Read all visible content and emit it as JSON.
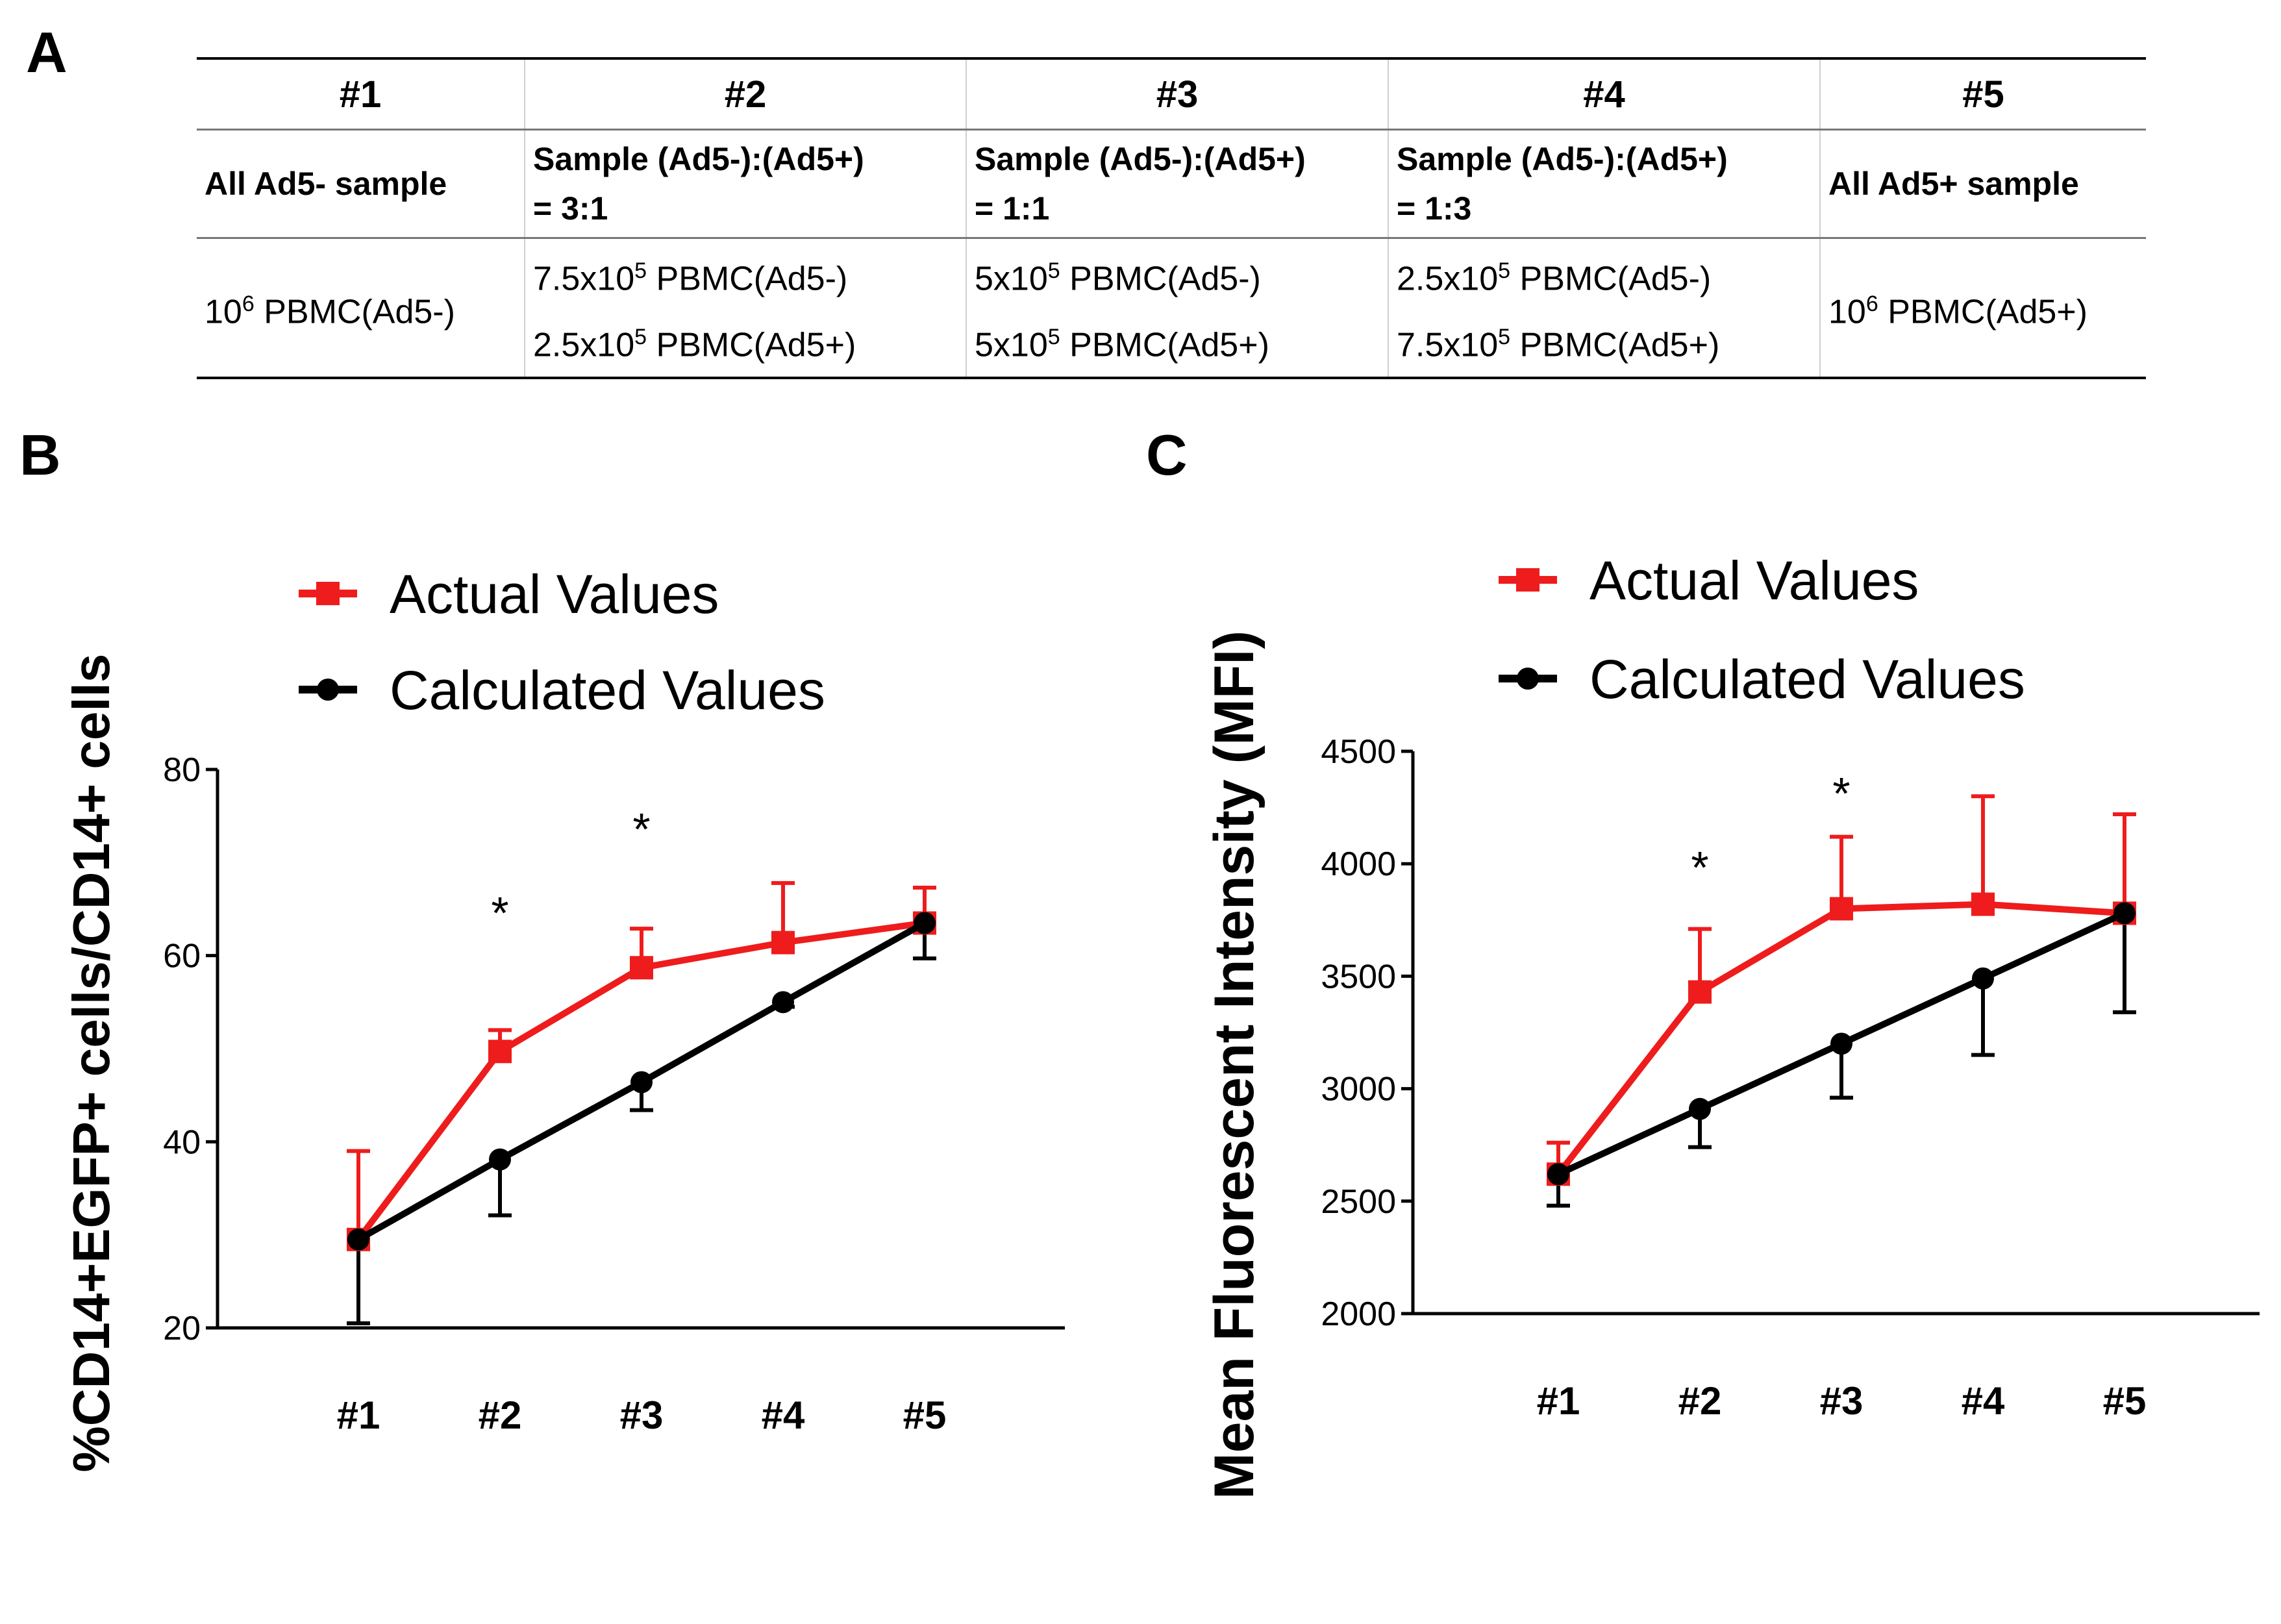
{
  "panels": {
    "a": "A",
    "b": "B",
    "c": "C"
  },
  "table": {
    "headers": [
      "#1",
      "#2",
      "#3",
      "#4",
      "#5"
    ],
    "descriptions": [
      [
        "All Ad5- sample"
      ],
      [
        "Sample (Ad5-):(Ad5+)",
        "= 3:1"
      ],
      [
        "Sample (Ad5-):(Ad5+)",
        "= 1:1"
      ],
      [
        "Sample (Ad5-):(Ad5+)",
        "= 1:3"
      ],
      [
        "All Ad5+ sample"
      ]
    ],
    "contents": [
      [
        {
          "base": "10",
          "exp": "6",
          "rest": " PBMC(Ad5-)"
        }
      ],
      [
        {
          "base": "7.5x10",
          "exp": "5",
          "rest": " PBMC(Ad5-)"
        },
        {
          "base": "2.5x10",
          "exp": "5",
          "rest": " PBMC(Ad5+)"
        }
      ],
      [
        {
          "base": "5x10",
          "exp": "5",
          "rest": " PBMC(Ad5-)"
        },
        {
          "base": "5x10",
          "exp": "5",
          "rest": " PBMC(Ad5+)"
        }
      ],
      [
        {
          "base": "2.5x10",
          "exp": "5",
          "rest": " PBMC(Ad5-)"
        },
        {
          "base": "7.5x10",
          "exp": "5",
          "rest": " PBMC(Ad5+)"
        }
      ],
      [
        {
          "base": "10",
          "exp": "6",
          "rest": " PBMC(Ad5+)"
        }
      ]
    ]
  },
  "colors": {
    "actual": "#ee1c1c",
    "calculated": "#000000"
  },
  "chart_data": [
    {
      "id": "B",
      "type": "line",
      "title": "",
      "xlabel": "",
      "ylabel": "%CD14+EGFP+ cells/CD14+ cells",
      "categories": [
        "#1",
        "#2",
        "#3",
        "#4",
        "#5"
      ],
      "ylim": [
        20,
        80
      ],
      "yticks": [
        20,
        40,
        60,
        80
      ],
      "series": [
        {
          "name": "Actual Values",
          "color": "#ee1c1c",
          "marker": "square",
          "values": [
            29.5,
            49.7,
            58.7,
            61.4,
            63.5
          ],
          "error": [
            9.5,
            2.3,
            4.2,
            6.4,
            3.8
          ],
          "error_dir": "up"
        },
        {
          "name": "Calculated Values",
          "color": "#000000",
          "marker": "circle",
          "values": [
            29.5,
            38.1,
            46.4,
            55.0,
            63.5
          ],
          "error": [
            9.0,
            6.0,
            3.0,
            0.5,
            3.8
          ],
          "error_dir": "down"
        }
      ],
      "annotations": [
        {
          "category": "#2",
          "value": 65,
          "text": "*"
        },
        {
          "category": "#3",
          "value": 74,
          "text": "*"
        }
      ],
      "legend": "top-left"
    },
    {
      "id": "C",
      "type": "line",
      "title": "",
      "xlabel": "",
      "ylabel": "Mean Fluorescent Intensity (MFI)",
      "categories": [
        "#1",
        "#2",
        "#3",
        "#4",
        "#5"
      ],
      "ylim": [
        2000,
        4500
      ],
      "yticks": [
        2000,
        2500,
        3000,
        3500,
        4000,
        4500
      ],
      "series": [
        {
          "name": "Actual Values",
          "color": "#ee1c1c",
          "marker": "square",
          "values": [
            2620,
            3430,
            3800,
            3820,
            3780
          ],
          "error": [
            140,
            280,
            320,
            480,
            440
          ],
          "error_dir": "up"
        },
        {
          "name": "Calculated Values",
          "color": "#000000",
          "marker": "circle",
          "values": [
            2620,
            2910,
            3200,
            3490,
            3780
          ],
          "error": [
            140,
            170,
            240,
            340,
            440
          ],
          "error_dir": "down"
        }
      ],
      "annotations": [
        {
          "category": "#2",
          "value": 4000,
          "text": "*"
        },
        {
          "category": "#3",
          "value": 4330,
          "text": "*"
        }
      ],
      "legend": "top-left"
    }
  ]
}
